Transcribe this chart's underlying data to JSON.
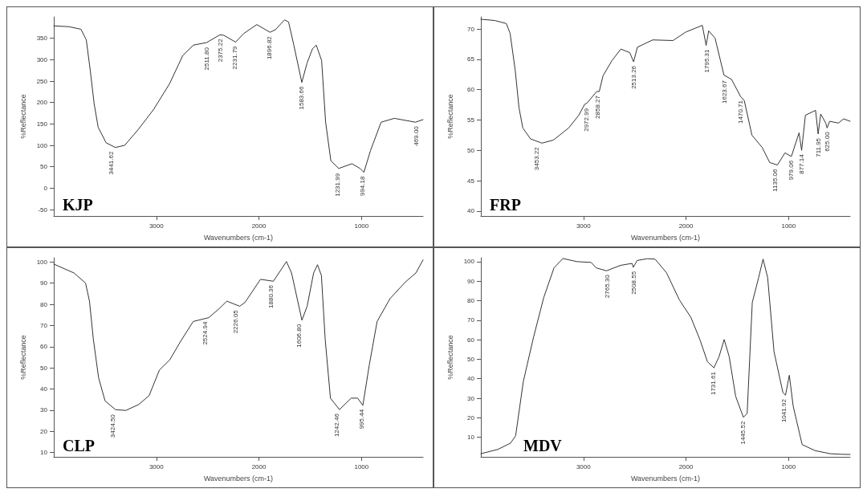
{
  "chart_data": [
    {
      "type": "line",
      "title": "KJP",
      "xlabel": "Wavenumbers (cm-1)",
      "ylabel": "%Reflectance",
      "xlim": [
        4000,
        400
      ],
      "xticks": [
        3000,
        2000,
        1000
      ],
      "ylim": [
        -65,
        400
      ],
      "yticks": [
        -50,
        0,
        50,
        100,
        150,
        200,
        250,
        300,
        350
      ],
      "grid": false,
      "marker": "none",
      "line_style": "solid",
      "series": [
        {
          "color": "#333333",
          "x": [
            4000,
            3850,
            3735,
            3683,
            3644,
            3606,
            3567,
            3490,
            3400,
            3309,
            3180,
            3026,
            2871,
            2742,
            2639,
            2510,
            2381,
            2343,
            2227,
            2149,
            2021,
            1892,
            1840,
            1750,
            1711,
            1660,
            1582,
            1531,
            1479,
            1441,
            1389,
            1350,
            1299,
            1222,
            1093,
            1015,
            977,
            912,
            809,
            680,
            474,
            400
          ],
          "values": [
            379,
            377,
            371,
            346,
            274,
            196,
            142,
            106,
            95,
            100,
            136,
            184,
            244,
            310,
            334,
            340,
            358,
            357,
            341,
            361,
            382,
            364,
            370,
            393,
            388,
            334,
            247,
            292,
            325,
            334,
            298,
            154,
            64,
            46,
            57,
            46,
            37,
            88,
            154,
            163,
            154,
            160
          ]
        }
      ],
      "annotations": [
        {
          "text": "3441.62",
          "x": 3441,
          "y": 95
        },
        {
          "text": "2511.80",
          "x": 2512,
          "y": 338
        },
        {
          "text": "2375.22",
          "x": 2375,
          "y": 358
        },
        {
          "text": "2231.79",
          "x": 2232,
          "y": 341
        },
        {
          "text": "1896.82",
          "x": 1897,
          "y": 364
        },
        {
          "text": "1583.66",
          "x": 1584,
          "y": 247
        },
        {
          "text": "1231.99",
          "x": 1232,
          "y": 44
        },
        {
          "text": "994.18",
          "x": 994,
          "y": 37
        },
        {
          "text": "469.00",
          "x": 469,
          "y": 154
        }
      ]
    },
    {
      "type": "line",
      "title": "FRP",
      "xlabel": "Wavenumbers (cm-1)",
      "ylabel": "%Reflectance",
      "xlim": [
        4000,
        400
      ],
      "xticks": [
        3000,
        2000,
        1000
      ],
      "ylim": [
        39.2,
        72
      ],
      "yticks": [
        40,
        45,
        50,
        55,
        60,
        65,
        70
      ],
      "grid": false,
      "marker": "none",
      "line_style": "solid",
      "series": [
        {
          "color": "#333333",
          "x": [
            4000,
            3864,
            3752,
            3715,
            3665,
            3628,
            3591,
            3516,
            3404,
            3293,
            3144,
            3045,
            2988,
            2965,
            2871,
            2846,
            2809,
            2722,
            2635,
            2548,
            2511,
            2474,
            2325,
            2127,
            2002,
            1841,
            1804,
            1779,
            1717,
            1630,
            1556,
            1469,
            1432,
            1357,
            1258,
            1184,
            1109,
            1035,
            973,
            898,
            873,
            836,
            737,
            712,
            687,
            638,
            625,
            600,
            514,
            464,
            400
          ],
          "values": [
            71.6,
            71.4,
            70.9,
            69.3,
            63.2,
            57.0,
            53.7,
            51.9,
            51.2,
            51.7,
            53.7,
            55.8,
            57.6,
            57.8,
            59.7,
            59.7,
            62.3,
            64.8,
            66.7,
            66.1,
            64.6,
            67.0,
            68.2,
            68.1,
            69.5,
            70.6,
            67.3,
            69.7,
            68.5,
            62.4,
            61.7,
            58.9,
            58.2,
            52.5,
            50.5,
            48.0,
            47.6,
            49.6,
            49.0,
            52.9,
            50.0,
            55.8,
            56.6,
            52.7,
            56.0,
            54.5,
            53.7,
            54.8,
            54.5,
            55.2,
            54.8
          ]
        }
      ],
      "annotations": [
        {
          "text": "3453.22",
          "x": 3453,
          "y": 51.2
        },
        {
          "text": "2972.99",
          "x": 2973,
          "y": 57.6
        },
        {
          "text": "2858.27",
          "x": 2858,
          "y": 59.7
        },
        {
          "text": "2513.26",
          "x": 2513,
          "y": 64.6
        },
        {
          "text": "1795.31",
          "x": 1795,
          "y": 67.3
        },
        {
          "text": "1623.67",
          "x": 1624,
          "y": 62.2
        },
        {
          "text": "1470.71",
          "x": 1471,
          "y": 58.9
        },
        {
          "text": "1135.06",
          "x": 1135,
          "y": 47.6
        },
        {
          "text": "979.06",
          "x": 979,
          "y": 49.0
        },
        {
          "text": "877.14",
          "x": 877,
          "y": 50.0
        },
        {
          "text": "711.95",
          "x": 712,
          "y": 52.7
        },
        {
          "text": "625.00",
          "x": 625,
          "y": 53.7
        }
      ]
    },
    {
      "type": "line",
      "title": "CLP",
      "xlabel": "Wavenumbers (cm-1)",
      "ylabel": "%Reflectance",
      "xlim": [
        4000,
        400
      ],
      "xticks": [
        3000,
        2000,
        1000
      ],
      "ylim": [
        8,
        102
      ],
      "yticks": [
        10,
        20,
        30,
        40,
        50,
        60,
        70,
        80,
        90,
        100
      ],
      "grid": false,
      "marker": "none",
      "line_style": "solid",
      "series": [
        {
          "color": "#333333",
          "x": [
            4000,
            3803,
            3690,
            3652,
            3614,
            3563,
            3500,
            3399,
            3298,
            3172,
            3071,
            2970,
            2869,
            2768,
            2641,
            2490,
            2389,
            2313,
            2187,
            2136,
            1985,
            1859,
            1732,
            1682,
            1581,
            1530,
            1467,
            1429,
            1391,
            1354,
            1303,
            1215,
            1101,
            1038,
            987,
            924,
            848,
            722,
            571,
            470,
            400
          ],
          "values": [
            99.0,
            94.8,
            90.0,
            81.5,
            63.4,
            45.3,
            34.4,
            30.3,
            29.9,
            32.7,
            36.9,
            49.0,
            53.8,
            62.2,
            71.9,
            73.7,
            77.9,
            81.5,
            79.1,
            80.9,
            91.8,
            90.9,
            100.2,
            94.8,
            72.5,
            79.1,
            94.8,
            98.7,
            93.6,
            63.4,
            35.7,
            30.3,
            35.7,
            35.7,
            32.3,
            51.4,
            71.9,
            82.7,
            90.6,
            94.8,
            101
          ]
        }
      ],
      "annotations": [
        {
          "text": "3424.50",
          "x": 3425,
          "y": 29.9
        },
        {
          "text": "2524.94",
          "x": 2525,
          "y": 73.7
        },
        {
          "text": "2226.05",
          "x": 2226,
          "y": 79.1
        },
        {
          "text": "1880.36",
          "x": 1880,
          "y": 91
        },
        {
          "text": "1606.80",
          "x": 1607,
          "y": 72.5
        },
        {
          "text": "1242.46",
          "x": 1242,
          "y": 30.3
        },
        {
          "text": "995.44",
          "x": 995,
          "y": 32.3
        }
      ]
    },
    {
      "type": "line",
      "title": "MDV",
      "xlabel": "Wavenumbers (cm-1)",
      "ylabel": "%Reflectance",
      "xlim": [
        4000,
        400
      ],
      "xticks": [
        3000,
        2000,
        1000
      ],
      "ylim": [
        0,
        102
      ],
      "yticks": [
        10,
        20,
        30,
        40,
        50,
        60,
        70,
        80,
        90,
        100
      ],
      "grid": false,
      "marker": "none",
      "line_style": "solid",
      "series": [
        {
          "color": "#333333",
          "x": [
            4000,
            3835,
            3711,
            3661,
            3586,
            3486,
            3387,
            3287,
            3200,
            3062,
            2925,
            2875,
            2776,
            2638,
            2526,
            2514,
            2476,
            2377,
            2302,
            2190,
            2065,
            1953,
            1865,
            1791,
            1728,
            1678,
            1628,
            1579,
            1516,
            1441,
            1404,
            1354,
            1292,
            1249,
            1204,
            1142,
            1055,
            1030,
            993,
            955,
            868,
            743,
            594,
            482,
            400
          ],
          "values": [
            1.6,
            3.8,
            7.0,
            10.8,
            38.6,
            61.4,
            81.6,
            96.8,
            101.6,
            100.0,
            99.6,
            96.8,
            95.3,
            98.1,
            99.1,
            97.1,
            100.6,
            101.5,
            101.3,
            94.3,
            80.4,
            71.5,
            60.1,
            48.7,
            45.6,
            51.3,
            60.1,
            51.3,
            31.0,
            20.3,
            22.2,
            79.1,
            91.8,
            101.3,
            91.8,
            53.8,
            32.9,
            31.6,
            41.8,
            25.9,
            6.3,
            3.2,
            1.6,
            1.3,
            1.2
          ]
        }
      ],
      "annotations": [
        {
          "text": "2765.30",
          "x": 2765,
          "y": 95.3
        },
        {
          "text": "2508.55",
          "x": 2509,
          "y": 97.1
        },
        {
          "text": "1731.61",
          "x": 1732,
          "y": 45.6
        },
        {
          "text": "1445.52",
          "x": 1446,
          "y": 20.3
        },
        {
          "text": "1041.92",
          "x": 1042,
          "y": 31.6
        }
      ]
    }
  ]
}
